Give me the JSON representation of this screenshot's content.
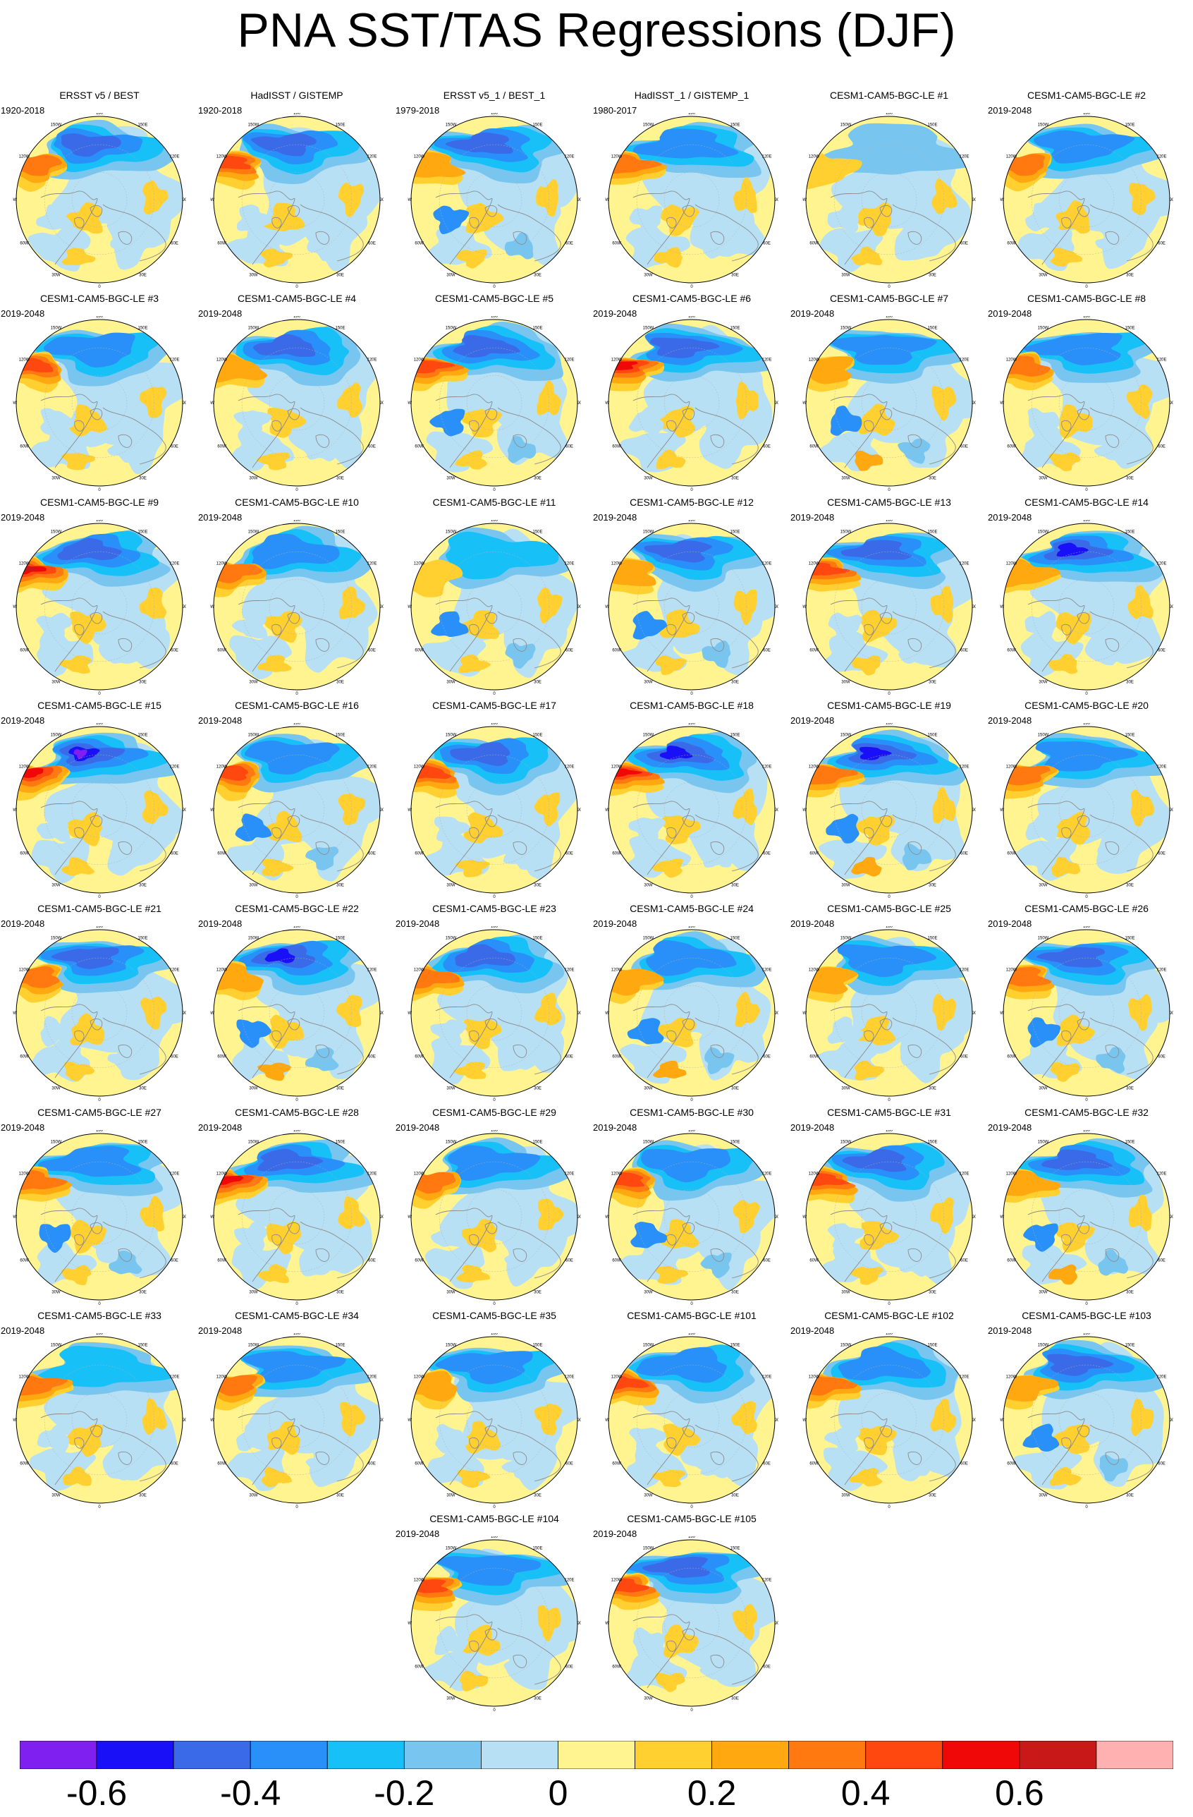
{
  "title": "PNA SST/TAS Regressions (DJF)",
  "map_labels": {
    "lon_180": "180",
    "lon_150w": "150W",
    "lon_150e": "150E",
    "lon_120w": "120W",
    "lon_120e": "120E",
    "lon_90w": "90W",
    "lon_90e": "90E",
    "lon_60w": "60W",
    "lon_60e": "60E",
    "lon_30w": "30W",
    "lon_30e": "30E",
    "lon_0": "0"
  },
  "panels": [
    {
      "title": "ERSST v5 / BEST",
      "period": "1920-2018",
      "pattern": {
        "cold": 0.85,
        "warm": 0.75,
        "extra": 0.3
      }
    },
    {
      "title": "HadISST / GISTEMP",
      "period": "1920-2018",
      "pattern": {
        "cold": 0.8,
        "warm": 0.9,
        "extra": 0.3
      }
    },
    {
      "title": "ERSST v5_1 / BEST_1",
      "period": "1979-2018",
      "pattern": {
        "cold": 0.9,
        "warm": 0.5,
        "extra": 0.5
      }
    },
    {
      "title": "HadISST_1 / GISTEMP_1",
      "period": "1980-2017",
      "pattern": {
        "cold": 0.75,
        "warm": 0.6,
        "extra": 0.4
      }
    },
    {
      "title": "CESM1-CAM5-BGC-LE #1",
      "period": "",
      "pattern": {
        "cold": 0.4,
        "warm": 0.15,
        "extra": 0.3
      }
    },
    {
      "title": "CESM1-CAM5-BGC-LE #2",
      "period": "2019-2048",
      "pattern": {
        "cold": 0.75,
        "warm": 0.6,
        "extra": 0.3
      }
    },
    {
      "title": "CESM1-CAM5-BGC-LE #3",
      "period": "2019-2048",
      "pattern": {
        "cold": 0.7,
        "warm": 0.9,
        "extra": 0.3
      }
    },
    {
      "title": "CESM1-CAM5-BGC-LE #4",
      "period": "2019-2048",
      "pattern": {
        "cold": 0.8,
        "warm": 0.5,
        "extra": 0.4
      }
    },
    {
      "title": "CESM1-CAM5-BGC-LE #5",
      "period": "",
      "pattern": {
        "cold": 0.95,
        "warm": 0.8,
        "extra": 0.5
      }
    },
    {
      "title": "CESM1-CAM5-BGC-LE #6",
      "period": "2019-2048",
      "pattern": {
        "cold": 0.95,
        "warm": 1.0,
        "extra": 0.3
      }
    },
    {
      "title": "CESM1-CAM5-BGC-LE #7",
      "period": "2019-2048",
      "pattern": {
        "cold": 0.6,
        "warm": 0.5,
        "extra": 0.6
      }
    },
    {
      "title": "CESM1-CAM5-BGC-LE #8",
      "period": "2019-2048",
      "pattern": {
        "cold": 0.6,
        "warm": 0.6,
        "extra": 0.3
      }
    },
    {
      "title": "CESM1-CAM5-BGC-LE #9",
      "period": "2019-2048",
      "pattern": {
        "cold": 0.85,
        "warm": 1.15,
        "extra": 0.3
      }
    },
    {
      "title": "CESM1-CAM5-BGC-LE #10",
      "period": "2019-2048",
      "pattern": {
        "cold": 0.7,
        "warm": 0.75,
        "extra": 0.4
      }
    },
    {
      "title": "CESM1-CAM5-BGC-LE #11",
      "period": "",
      "pattern": {
        "cold": 0.5,
        "warm": 0.3,
        "extra": 0.5
      }
    },
    {
      "title": "CESM1-CAM5-BGC-LE #12",
      "period": "2019-2048",
      "pattern": {
        "cold": 0.85,
        "warm": 0.4,
        "extra": 0.5
      }
    },
    {
      "title": "CESM1-CAM5-BGC-LE #13",
      "period": "2019-2048",
      "pattern": {
        "cold": 0.9,
        "warm": 0.85,
        "extra": 0.3
      }
    },
    {
      "title": "CESM1-CAM5-BGC-LE #14",
      "period": "2019-2048",
      "pattern": {
        "cold": 1.0,
        "warm": 0.5,
        "extra": 0.3
      }
    },
    {
      "title": "CESM1-CAM5-BGC-LE #15",
      "period": "2019-2048",
      "pattern": {
        "cold": 1.15,
        "warm": 1.0,
        "extra": 0.4
      }
    },
    {
      "title": "CESM1-CAM5-BGC-LE #16",
      "period": "2019-2048",
      "pattern": {
        "cold": 0.7,
        "warm": 0.9,
        "extra": 0.5
      }
    },
    {
      "title": "CESM1-CAM5-BGC-LE #17",
      "period": "",
      "pattern": {
        "cold": 0.85,
        "warm": 0.85,
        "extra": 0.3
      }
    },
    {
      "title": "CESM1-CAM5-BGC-LE #18",
      "period": "",
      "pattern": {
        "cold": 1.1,
        "warm": 1.1,
        "extra": 0.4
      }
    },
    {
      "title": "CESM1-CAM5-BGC-LE #19",
      "period": "2019-2048",
      "pattern": {
        "cold": 1.0,
        "warm": 0.7,
        "extra": 0.6
      }
    },
    {
      "title": "CESM1-CAM5-BGC-LE #20",
      "period": "2019-2048",
      "pattern": {
        "cold": 0.75,
        "warm": 0.7,
        "extra": 0.3
      }
    },
    {
      "title": "CESM1-CAM5-BGC-LE #21",
      "period": "2019-2048",
      "pattern": {
        "cold": 0.95,
        "warm": 0.6,
        "extra": 0.4
      }
    },
    {
      "title": "CESM1-CAM5-BGC-LE #22",
      "period": "2019-2048",
      "pattern": {
        "cold": 1.0,
        "warm": 0.5,
        "extra": 0.7
      }
    },
    {
      "title": "CESM1-CAM5-BGC-LE #23",
      "period": "2019-2048",
      "pattern": {
        "cold": 0.8,
        "warm": 0.7,
        "extra": 0.4
      }
    },
    {
      "title": "CESM1-CAM5-BGC-LE #24",
      "period": "2019-2048",
      "pattern": {
        "cold": 0.75,
        "warm": 0.5,
        "extra": 0.6
      }
    },
    {
      "title": "CESM1-CAM5-BGC-LE #25",
      "period": "2019-2048",
      "pattern": {
        "cold": 0.65,
        "warm": 0.4,
        "extra": 0.3
      }
    },
    {
      "title": "CESM1-CAM5-BGC-LE #26",
      "period": "2019-2048",
      "pattern": {
        "cold": 0.95,
        "warm": 0.6,
        "extra": 0.5
      }
    },
    {
      "title": "CESM1-CAM5-BGC-LE #27",
      "period": "2019-2048",
      "pattern": {
        "cold": 0.7,
        "warm": 0.75,
        "extra": 0.5
      }
    },
    {
      "title": "CESM1-CAM5-BGC-LE #28",
      "period": "2019-2048",
      "pattern": {
        "cold": 0.85,
        "warm": 1.0,
        "extra": 0.4
      }
    },
    {
      "title": "CESM1-CAM5-BGC-LE #29",
      "period": "2019-2048",
      "pattern": {
        "cold": 0.6,
        "warm": 0.6,
        "extra": 0.3
      }
    },
    {
      "title": "CESM1-CAM5-BGC-LE #30",
      "period": "2019-2048",
      "pattern": {
        "cold": 0.7,
        "warm": 0.8,
        "extra": 0.5
      }
    },
    {
      "title": "CESM1-CAM5-BGC-LE #31",
      "period": "2019-2048",
      "pattern": {
        "cold": 0.85,
        "warm": 0.85,
        "extra": 0.4
      }
    },
    {
      "title": "CESM1-CAM5-BGC-LE #32",
      "period": "2019-2048",
      "pattern": {
        "cold": 0.95,
        "warm": 0.5,
        "extra": 0.6
      }
    },
    {
      "title": "CESM1-CAM5-BGC-LE #33",
      "period": "2019-2048",
      "pattern": {
        "cold": 0.55,
        "warm": 0.7,
        "extra": 0.3
      }
    },
    {
      "title": "CESM1-CAM5-BGC-LE #34",
      "period": "2019-2048",
      "pattern": {
        "cold": 0.7,
        "warm": 0.6,
        "extra": 0.4
      }
    },
    {
      "title": "CESM1-CAM5-BGC-LE #35",
      "period": "",
      "pattern": {
        "cold": 0.6,
        "warm": 0.5,
        "extra": 0.3
      }
    },
    {
      "title": "CESM1-CAM5-BGC-LE #101",
      "period": "",
      "pattern": {
        "cold": 0.65,
        "warm": 0.9,
        "extra": 0.4
      }
    },
    {
      "title": "CESM1-CAM5-BGC-LE #102",
      "period": "2019-2048",
      "pattern": {
        "cold": 0.75,
        "warm": 0.6,
        "extra": 0.3
      }
    },
    {
      "title": "CESM1-CAM5-BGC-LE #103",
      "period": "2019-2048",
      "pattern": {
        "cold": 0.95,
        "warm": 0.4,
        "extra": 0.5
      }
    },
    {
      "title": "CESM1-CAM5-BGC-LE #104",
      "period": "2019-2048",
      "pattern": {
        "cold": 0.75,
        "warm": 0.85,
        "extra": 0.3
      }
    },
    {
      "title": "CESM1-CAM5-BGC-LE #105",
      "period": "2019-2048",
      "pattern": {
        "cold": 0.8,
        "warm": 0.8,
        "extra": 0.3
      }
    }
  ],
  "colorbar": {
    "colors": [
      "#8020f0",
      "#1a10f8",
      "#3a6ae8",
      "#2890f8",
      "#18c0f8",
      "#78c6f0",
      "#b8e0f4",
      "#fff490",
      "#ffd030",
      "#ffa810",
      "#ff7810",
      "#ff4810",
      "#f00808",
      "#c81818",
      "#ffb0b0"
    ],
    "tick_labels": [
      "-0.6",
      "-0.4",
      "-0.2",
      "0",
      "0.2",
      "0.4",
      "0.6"
    ]
  }
}
